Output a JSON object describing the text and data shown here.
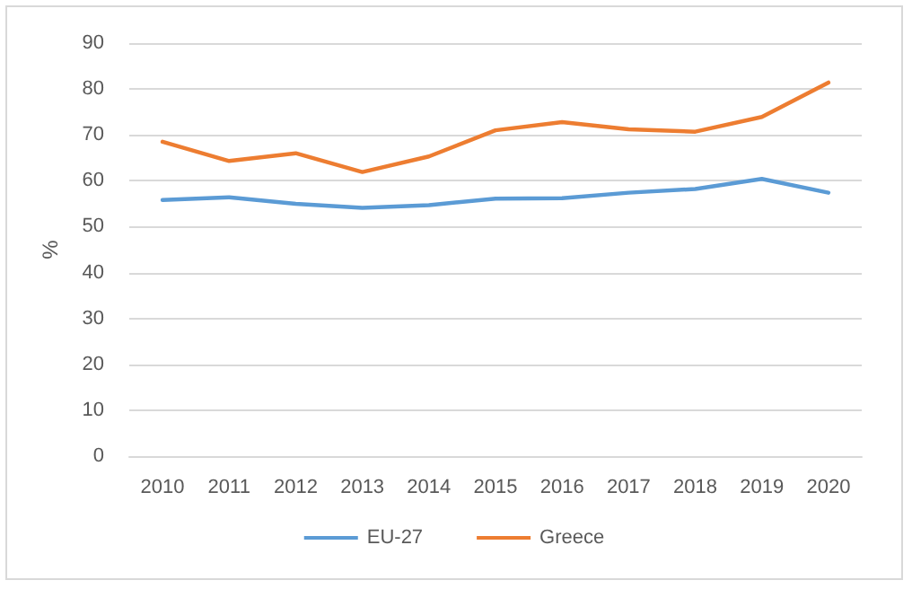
{
  "chart_data": {
    "type": "line",
    "ylabel": "%",
    "categories": [
      "2010",
      "2011",
      "2012",
      "2013",
      "2014",
      "2015",
      "2016",
      "2017",
      "2018",
      "2019",
      "2020"
    ],
    "series": [
      {
        "name": "EU-27",
        "color": "#5b9bd5",
        "values": [
          55.8,
          56.4,
          55,
          54.1,
          54.7,
          56.1,
          56.2,
          57.4,
          58.2,
          60.4,
          57.4
        ]
      },
      {
        "name": "Greece",
        "color": "#ed7d31",
        "values": [
          68.5,
          64.3,
          66,
          61.9,
          65.3,
          71,
          72.8,
          71.2,
          70.7,
          73.9,
          81.4
        ]
      }
    ],
    "ylim": [
      0,
      90
    ],
    "yticks": [
      0,
      10,
      20,
      30,
      40,
      50,
      60,
      70,
      80,
      90
    ],
    "grid": "y",
    "legend": "bottom",
    "marker": "none",
    "line_style": "solid"
  }
}
